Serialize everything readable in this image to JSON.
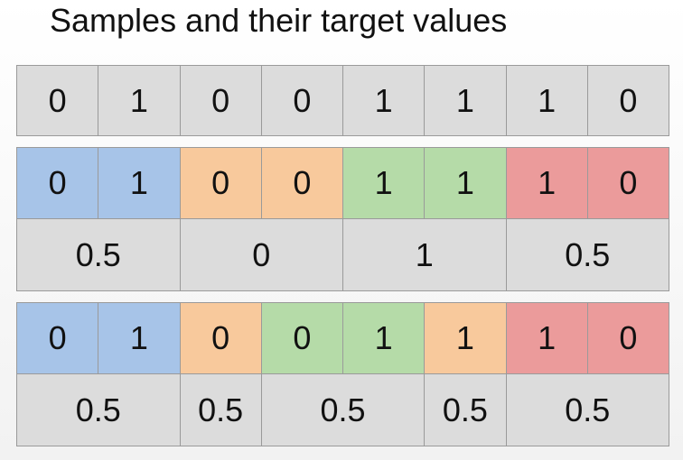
{
  "title": "Samples and their target values",
  "samples": [
    0,
    1,
    0,
    0,
    1,
    1,
    1,
    0
  ],
  "gray": "#dcdcdc",
  "splits": [
    {
      "groups": [
        {
          "color": "#a7c4e8",
          "samples": [
            0,
            1
          ],
          "target": 0.5
        },
        {
          "color": "#f8c99c",
          "samples": [
            0,
            0
          ],
          "target": 0
        },
        {
          "color": "#b5dba8",
          "samples": [
            1,
            1
          ],
          "target": 1
        },
        {
          "color": "#eb9b9b",
          "samples": [
            1,
            0
          ],
          "target": 0.5
        }
      ]
    },
    {
      "groups": [
        {
          "color": "#a7c4e8",
          "samples": [
            0,
            1
          ],
          "target": 0.5
        },
        {
          "color": "#f8c99c",
          "samples": [
            0
          ],
          "target": 0.5
        },
        {
          "color": "#b5dba8",
          "samples": [
            0,
            1
          ],
          "target": 0.5
        },
        {
          "color": "#f8c99c",
          "samples": [
            1
          ],
          "target": 0.5
        },
        {
          "color": "#eb9b9b",
          "samples": [
            1,
            0
          ],
          "target": 0.5
        }
      ]
    }
  ]
}
